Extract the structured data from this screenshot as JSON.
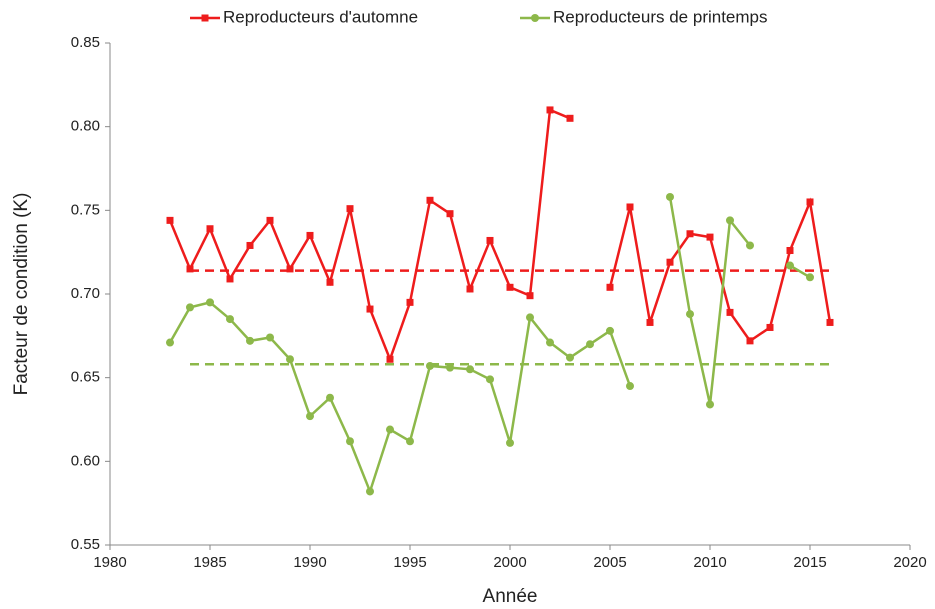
{
  "chart_data": {
    "type": "line",
    "xlabel": "Année",
    "ylabel": "Facteur de condition (K)",
    "x": [
      1983,
      1984,
      1985,
      1986,
      1987,
      1988,
      1989,
      1990,
      1991,
      1992,
      1993,
      1994,
      1995,
      1996,
      1997,
      1998,
      1999,
      2000,
      2001,
      2002,
      2003,
      2004,
      2005,
      2006,
      2007,
      2008,
      2009,
      2010,
      2011,
      2012,
      2013,
      2014,
      2015,
      2016
    ],
    "series": [
      {
        "name": "Reproducteurs d'automne",
        "color": "#ee1c1c",
        "marker": "square",
        "values": [
          0.744,
          0.715,
          0.739,
          0.709,
          0.729,
          0.744,
          0.715,
          0.735,
          0.707,
          0.751,
          0.691,
          0.661,
          0.695,
          0.756,
          0.748,
          0.703,
          0.732,
          0.704,
          0.699,
          0.81,
          0.805,
          null,
          0.704,
          0.752,
          0.683,
          0.719,
          0.736,
          0.734,
          0.689,
          0.672,
          0.68,
          0.726,
          0.755,
          0.683
        ]
      },
      {
        "name": "Reproducteurs de printemps",
        "color": "#8db84a",
        "marker": "circle",
        "values": [
          0.671,
          0.692,
          0.695,
          0.685,
          0.672,
          0.674,
          0.661,
          0.627,
          0.638,
          0.612,
          0.582,
          0.619,
          0.612,
          0.657,
          0.656,
          0.655,
          0.649,
          0.611,
          0.686,
          0.671,
          0.662,
          0.67,
          0.678,
          0.645,
          null,
          0.758,
          0.688,
          0.634,
          0.744,
          0.729,
          null,
          0.717,
          0.71,
          null
        ]
      }
    ],
    "reference_lines": [
      {
        "value": 0.714,
        "color": "#ee1c1c",
        "x": [
          1984,
          2016
        ]
      },
      {
        "value": 0.658,
        "color": "#8db84a",
        "x": [
          1984,
          2016
        ]
      }
    ],
    "xlim": [
      1980,
      2020
    ],
    "xticks": [
      1980,
      1985,
      1990,
      1995,
      2000,
      2005,
      2010,
      2015,
      2020
    ],
    "ylim": [
      0.55,
      0.85
    ],
    "yticks": [
      {
        "value": 0.55,
        "label": "0.55"
      },
      {
        "value": 0.6,
        "label": "0.60"
      },
      {
        "value": 0.65,
        "label": "0.65"
      },
      {
        "value": 0.7,
        "label": "0.70"
      },
      {
        "value": 0.75,
        "label": "0.75"
      },
      {
        "value": 0.8,
        "label": "0.80"
      },
      {
        "value": 0.85,
        "label": "0.85"
      }
    ],
    "grid": false,
    "legend": "top"
  }
}
